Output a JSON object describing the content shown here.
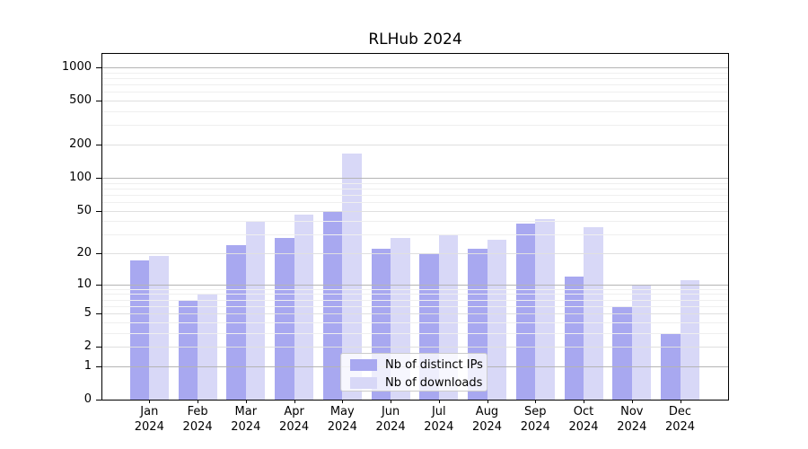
{
  "chart_data": {
    "type": "bar",
    "title": "RLHub 2024",
    "year": "2024",
    "categories": [
      "Jan",
      "Feb",
      "Mar",
      "Apr",
      "May",
      "Jun",
      "Jul",
      "Aug",
      "Sep",
      "Oct",
      "Nov",
      "Dec"
    ],
    "series": [
      {
        "name": "Nb of distinct IPs",
        "color": "#a8a8f0",
        "values": [
          17,
          7,
          24,
          28,
          50,
          22,
          20,
          22,
          38,
          12,
          6,
          3
        ]
      },
      {
        "name": "Nb of downloads",
        "color": "#d8d8f7",
        "values": [
          19,
          8,
          40,
          46,
          166,
          28,
          30,
          27,
          42,
          35,
          10,
          11
        ]
      }
    ],
    "xlabel": "",
    "ylabel": "",
    "y_scale": "log1p",
    "y_ticks": [
      0,
      1,
      2,
      5,
      10,
      20,
      50,
      100,
      200,
      500,
      1000
    ],
    "ylim": [
      0,
      1350
    ],
    "grid": "major dark at 1,10,100,1000; light at 2,5,20,50,200,500; faint minors",
    "legend_position": "inside-bottom-center",
    "colors": {
      "grid_major": "#b4b4b4",
      "grid_light": "#e0e0e0",
      "grid_minor": "#efefef",
      "spine": "#000000",
      "legend_border": "#cccccc"
    }
  }
}
